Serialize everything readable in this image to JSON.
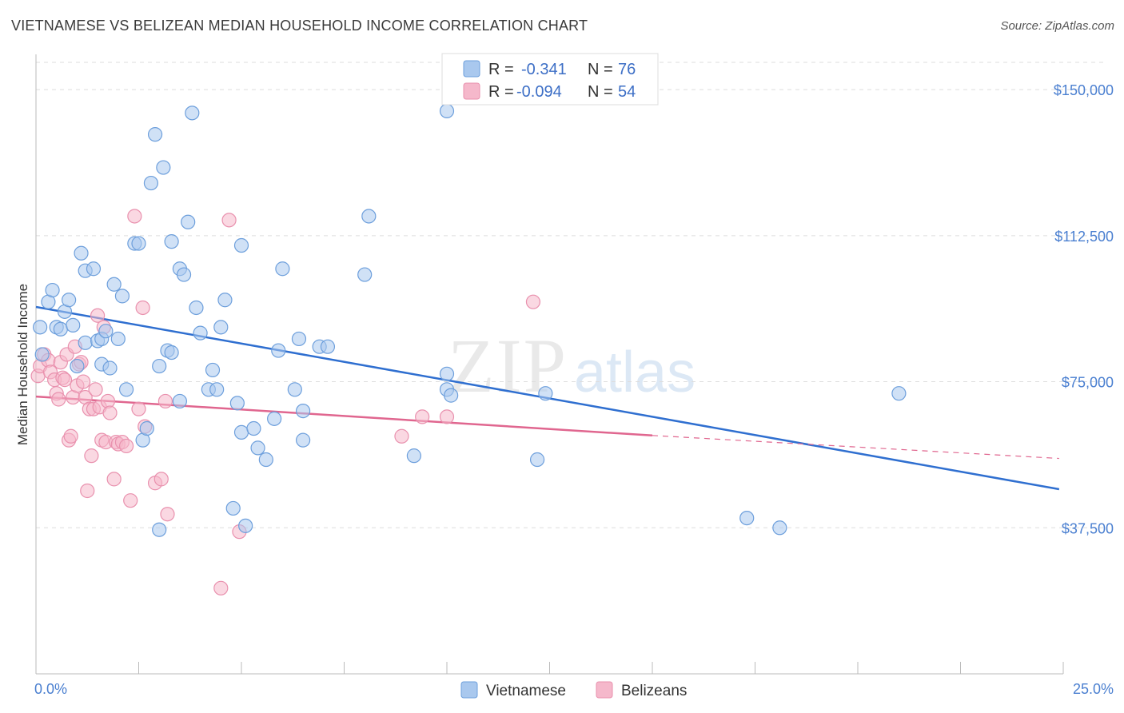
{
  "title": "VIETNAMESE VS BELIZEAN MEDIAN HOUSEHOLD INCOME CORRELATION CHART",
  "source": "Source: ZipAtlas.com",
  "watermark": {
    "zip": "ZIP",
    "atlas": "atlas"
  },
  "colors": {
    "blue_fill": "#a9c8ee",
    "blue_stroke": "#6d9fdc",
    "blue_line": "#2f6fd0",
    "pink_fill": "#f5b8cb",
    "pink_stroke": "#e991ae",
    "pink_line": "#e0668f",
    "grid": "#dddddd",
    "axis": "#bbbbbb"
  },
  "legend": {
    "rows": [
      {
        "r_label": "R =",
        "r_value": "-0.341",
        "n_label": "N =",
        "n_value": "76"
      },
      {
        "r_label": "R =",
        "r_value": "-0.094",
        "n_label": "N =",
        "n_value": "54"
      }
    ]
  },
  "chart_data": {
    "type": "scatter",
    "title": "VIETNAMESE VS BELIZEAN MEDIAN HOUSEHOLD INCOME CORRELATION CHART",
    "xlabel": "",
    "ylabel": "Median Household Income",
    "xlim": [
      0,
      25
    ],
    "ylim": [
      0,
      157000
    ],
    "x_tick_labels": [
      "0.0%",
      "25.0%"
    ],
    "y_ticks": [
      37500,
      75000,
      112500,
      150000
    ],
    "y_tick_labels": [
      "$37,500",
      "$75,000",
      "$112,500",
      "$150,000"
    ],
    "grid": true,
    "legend_position": "top-center",
    "series": [
      {
        "name": "Vietnamese",
        "r": -0.341,
        "n": 76,
        "trend": {
          "x": [
            0,
            24.9
          ],
          "y": [
            94200,
            47400
          ]
        },
        "points": [
          [
            0.1,
            89000
          ],
          [
            0.3,
            95500
          ],
          [
            0.4,
            98500
          ],
          [
            0.5,
            89000
          ],
          [
            0.6,
            88500
          ],
          [
            0.7,
            93000
          ],
          [
            0.8,
            96000
          ],
          [
            0.9,
            89500
          ],
          [
            1.0,
            79000
          ],
          [
            1.1,
            108000
          ],
          [
            1.2,
            85000
          ],
          [
            1.2,
            103500
          ],
          [
            1.4,
            104000
          ],
          [
            1.5,
            85500
          ],
          [
            1.6,
            86000
          ],
          [
            1.6,
            79500
          ],
          [
            1.7,
            88000
          ],
          [
            1.8,
            78500
          ],
          [
            1.9,
            100000
          ],
          [
            2.0,
            86000
          ],
          [
            2.1,
            97000
          ],
          [
            2.2,
            73000
          ],
          [
            2.4,
            110500
          ],
          [
            2.5,
            110500
          ],
          [
            2.6,
            60000
          ],
          [
            2.7,
            63000
          ],
          [
            2.8,
            126000
          ],
          [
            2.9,
            138500
          ],
          [
            3.0,
            37000
          ],
          [
            3.0,
            79000
          ],
          [
            3.1,
            130000
          ],
          [
            3.2,
            83000
          ],
          [
            3.3,
            82500
          ],
          [
            3.3,
            111000
          ],
          [
            3.5,
            104000
          ],
          [
            3.5,
            70000
          ],
          [
            3.6,
            102500
          ],
          [
            3.7,
            116000
          ],
          [
            3.8,
            144000
          ],
          [
            3.9,
            94000
          ],
          [
            4.0,
            87500
          ],
          [
            4.2,
            73000
          ],
          [
            4.3,
            78000
          ],
          [
            4.4,
            73000
          ],
          [
            4.5,
            89000
          ],
          [
            4.6,
            96000
          ],
          [
            4.8,
            42500
          ],
          [
            4.9,
            69500
          ],
          [
            5.0,
            110000
          ],
          [
            5.0,
            62000
          ],
          [
            5.1,
            38000
          ],
          [
            5.3,
            63000
          ],
          [
            5.4,
            58000
          ],
          [
            5.6,
            55000
          ],
          [
            5.8,
            65500
          ],
          [
            5.9,
            83000
          ],
          [
            6.0,
            104000
          ],
          [
            6.3,
            73000
          ],
          [
            6.4,
            86000
          ],
          [
            6.5,
            67500
          ],
          [
            6.5,
            60000
          ],
          [
            6.9,
            84000
          ],
          [
            7.1,
            84000
          ],
          [
            8.0,
            102500
          ],
          [
            8.1,
            117500
          ],
          [
            9.2,
            56000
          ],
          [
            10.0,
            144500
          ],
          [
            10.0,
            77000
          ],
          [
            10.0,
            73000
          ],
          [
            10.1,
            71500
          ],
          [
            12.2,
            55000
          ],
          [
            12.4,
            72000
          ],
          [
            17.3,
            40000
          ],
          [
            18.1,
            37500
          ],
          [
            21.0,
            72000
          ],
          [
            0.15,
            82000
          ]
        ]
      },
      {
        "name": "Belizeans",
        "r": -0.094,
        "n": 54,
        "trend": {
          "x": [
            0,
            15
          ],
          "y": [
            71200,
            61200
          ]
        },
        "trend_dashed": {
          "x": [
            15,
            24.9
          ],
          "y": [
            61200,
            55300
          ]
        },
        "points": [
          [
            0.05,
            76500
          ],
          [
            0.1,
            79000
          ],
          [
            0.2,
            82000
          ],
          [
            0.3,
            80500
          ],
          [
            0.35,
            77500
          ],
          [
            0.45,
            75500
          ],
          [
            0.5,
            72000
          ],
          [
            0.55,
            70500
          ],
          [
            0.6,
            80000
          ],
          [
            0.65,
            76000
          ],
          [
            0.7,
            75500
          ],
          [
            0.75,
            82000
          ],
          [
            0.8,
            60000
          ],
          [
            0.85,
            61000
          ],
          [
            0.9,
            71000
          ],
          [
            0.95,
            84000
          ],
          [
            1.0,
            74000
          ],
          [
            1.05,
            79500
          ],
          [
            1.1,
            80000
          ],
          [
            1.15,
            75000
          ],
          [
            1.2,
            71000
          ],
          [
            1.25,
            47000
          ],
          [
            1.3,
            68000
          ],
          [
            1.35,
            56000
          ],
          [
            1.4,
            68000
          ],
          [
            1.5,
            92000
          ],
          [
            1.55,
            68500
          ],
          [
            1.6,
            60000
          ],
          [
            1.65,
            89000
          ],
          [
            1.7,
            59500
          ],
          [
            1.75,
            70000
          ],
          [
            1.8,
            67000
          ],
          [
            1.9,
            50000
          ],
          [
            1.95,
            59500
          ],
          [
            2.0,
            59000
          ],
          [
            2.1,
            59500
          ],
          [
            2.2,
            58500
          ],
          [
            2.3,
            44500
          ],
          [
            2.4,
            117500
          ],
          [
            2.5,
            68000
          ],
          [
            2.6,
            94000
          ],
          [
            2.65,
            63500
          ],
          [
            2.9,
            49000
          ],
          [
            3.05,
            50000
          ],
          [
            3.15,
            70000
          ],
          [
            3.2,
            41000
          ],
          [
            4.5,
            22000
          ],
          [
            4.7,
            116500
          ],
          [
            4.95,
            36500
          ],
          [
            8.9,
            61000
          ],
          [
            9.4,
            66000
          ],
          [
            10.0,
            66000
          ],
          [
            12.1,
            95500
          ],
          [
            1.45,
            73000
          ]
        ]
      }
    ]
  }
}
